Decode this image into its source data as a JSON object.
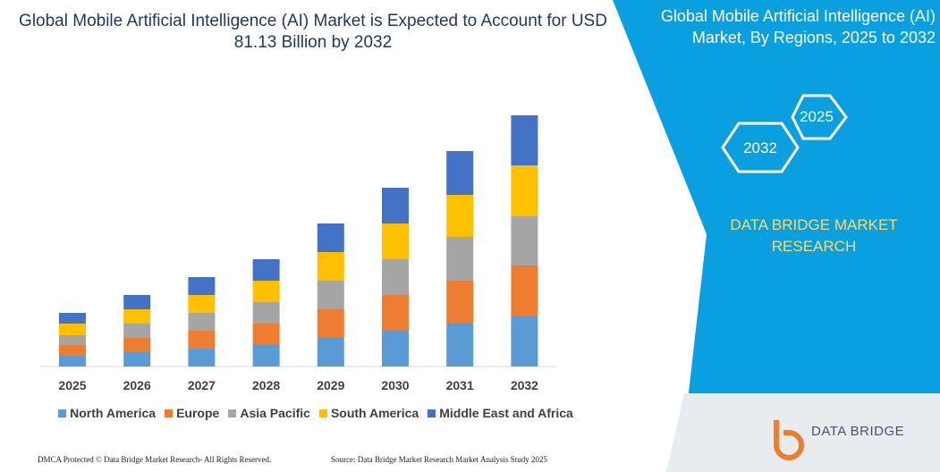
{
  "chart_data": {
    "type": "bar",
    "stacked": true,
    "title": "Global Mobile Artificial Intelligence (AI) Market is Expected to Account for USD 81.13 Billion by 2032",
    "categories": [
      "2025",
      "2026",
      "2027",
      "2028",
      "2029",
      "2030",
      "2031",
      "2032"
    ],
    "series": [
      {
        "name": "North America",
        "color": "#5b9bd5",
        "values": [
          12,
          16,
          20,
          24,
          32,
          40,
          48,
          56
        ]
      },
      {
        "name": "Europe",
        "color": "#ed7d31",
        "values": [
          12,
          16,
          20,
          24,
          32,
          40,
          48,
          57
        ]
      },
      {
        "name": "Asia Pacific",
        "color": "#a5a5a5",
        "values": [
          11,
          16,
          20,
          24,
          32,
          40,
          49,
          55
        ]
      },
      {
        "name": "South America",
        "color": "#ffc000",
        "values": [
          13,
          16,
          20,
          24,
          32,
          40,
          47,
          57
        ]
      },
      {
        "name": "Middle East and Africa",
        "color": "#4472c4",
        "values": [
          12,
          16,
          20,
          24,
          32,
          40,
          49,
          56
        ]
      }
    ]
  },
  "panel": {
    "title": "Global Mobile Artificial Intelligence (AI) Market, By Regions, 2025 to 2032",
    "hexagons": [
      "2025",
      "2032"
    ],
    "brand": "DATA BRIDGE MARKET RESEARCH"
  },
  "footer": {
    "left": "DMCA Protected © Data Bridge Market Research- All Rights Reserved.",
    "right": "Source: Data Bridge Market Research Market Analysis Study 2025",
    "logo": "DATA BRIDGE"
  }
}
